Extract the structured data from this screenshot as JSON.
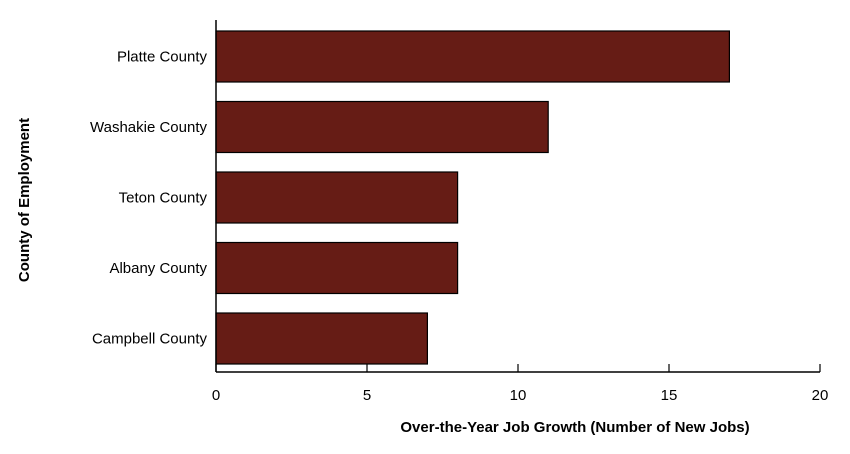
{
  "chart_data": {
    "type": "bar",
    "orientation": "horizontal",
    "categories": [
      "Platte County",
      "Washakie County",
      "Teton County",
      "Albany County",
      "Campbell County"
    ],
    "values": [
      17,
      11,
      8,
      8,
      7
    ],
    "xlabel": "Over-the-Year Job Growth (Number of New Jobs)",
    "ylabel": "County of Employment",
    "xlim": [
      0,
      20
    ],
    "xticks": [
      "0",
      "5",
      "10",
      "15",
      "20"
    ],
    "grid": false,
    "bar_color": "#661c15"
  }
}
